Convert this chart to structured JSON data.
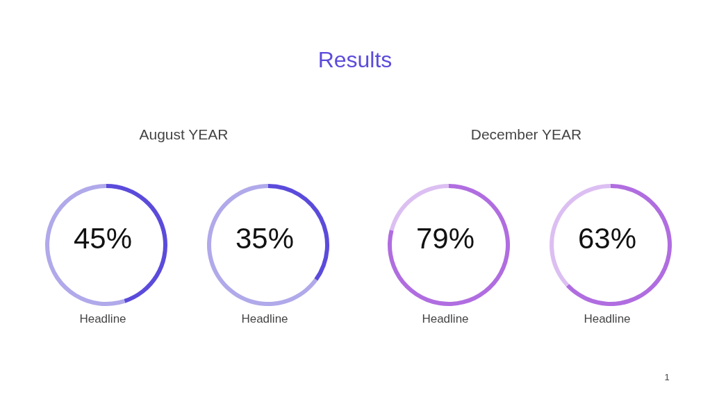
{
  "chart_data": [
    {
      "type": "donut",
      "title": "Results",
      "subtitle": "August YEAR",
      "xlabel": "Headline",
      "categories": [
        null,
        null
      ],
      "values": [
        45,
        55
      ],
      "colors": [
        "#5b4bdb",
        "#b0a9ea"
      ],
      "annotations": [
        "45%"
      ]
    },
    {
      "type": "donut",
      "xlabel": "Headline",
      "categories": [
        null,
        null
      ],
      "values": [
        35,
        65
      ],
      "colors": [
        "#5b4bdb",
        "#b0a9ea"
      ],
      "annotations": [
        "35%"
      ]
    },
    {
      "type": "donut",
      "subtitle": "December YEAR",
      "xlabel": "Headline",
      "categories": [
        null,
        null
      ],
      "values": [
        79,
        21
      ],
      "colors": [
        "#b06de0",
        "#dcbff2"
      ],
      "annotations": [
        "79%"
      ]
    },
    {
      "type": "donut",
      "xlabel": "Headline",
      "categories": [
        null,
        null
      ],
      "values": [
        63,
        37
      ],
      "colors": [
        "#b06de0",
        "#dcbff2"
      ],
      "annotations": [
        "63%",
        "1"
      ]
    }
  ]
}
